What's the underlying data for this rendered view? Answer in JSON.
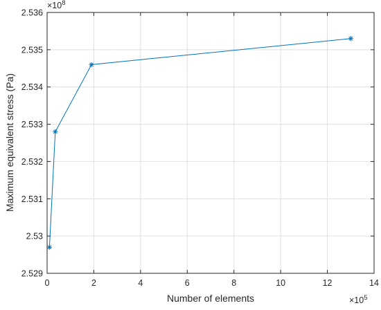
{
  "chart_data": {
    "type": "line",
    "title": "",
    "xlabel": "Number of elements",
    "ylabel": "Maximum equivalent stress (Pa)",
    "x_multiplier": {
      "base": "×10",
      "exp": "5"
    },
    "y_multiplier": {
      "base": "×10",
      "exp": "8"
    },
    "xlim": [
      0,
      14
    ],
    "ylim": [
      2.529,
      2.536
    ],
    "x_ticks": [
      0,
      2,
      4,
      6,
      8,
      10,
      12,
      14
    ],
    "x_tick_labels": [
      "0",
      "2",
      "4",
      "6",
      "8",
      "10",
      "12",
      "14"
    ],
    "y_ticks": [
      2.529,
      2.53,
      2.531,
      2.532,
      2.533,
      2.534,
      2.535,
      2.536
    ],
    "y_tick_labels": [
      "2.529",
      "2.53",
      "2.531",
      "2.532",
      "2.533",
      "2.534",
      "2.535",
      "2.536"
    ],
    "grid": true,
    "series": [
      {
        "color": "#0072BD",
        "marker": "asterisk",
        "x": [
          0.1,
          0.35,
          1.9,
          13.0
        ],
        "y": [
          2.5297,
          2.5328,
          2.5346,
          2.5353
        ]
      }
    ]
  }
}
